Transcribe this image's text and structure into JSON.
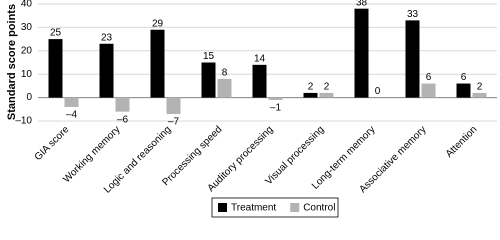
{
  "chart_data": {
    "type": "bar",
    "y_label": "Standard score points",
    "categories": [
      "GIA score",
      "Working memory",
      "Logic and reasoning",
      "Processing speed",
      "Auditory processing",
      "Visual processing",
      "Long-term memory",
      "Associative memory",
      "Attention"
    ],
    "series": [
      {
        "name": "Treatment",
        "color": "#000000",
        "values": [
          25,
          23,
          29,
          15,
          14,
          2,
          38,
          33,
          6
        ]
      },
      {
        "name": "Control",
        "color": "#b3b3b3",
        "values": [
          -4,
          -6,
          -7,
          8,
          -1,
          2,
          0,
          6,
          2
        ],
        "value_labels": [
          "–4",
          "–6",
          "–7",
          "8",
          "–1",
          "2",
          "0",
          "6",
          "2"
        ]
      }
    ],
    "ylim": [
      -10,
      40
    ],
    "yticks": [
      {
        "value": -10,
        "label": "–10"
      },
      0,
      10,
      20,
      30,
      40
    ],
    "grid": true,
    "legend": "bottom"
  }
}
